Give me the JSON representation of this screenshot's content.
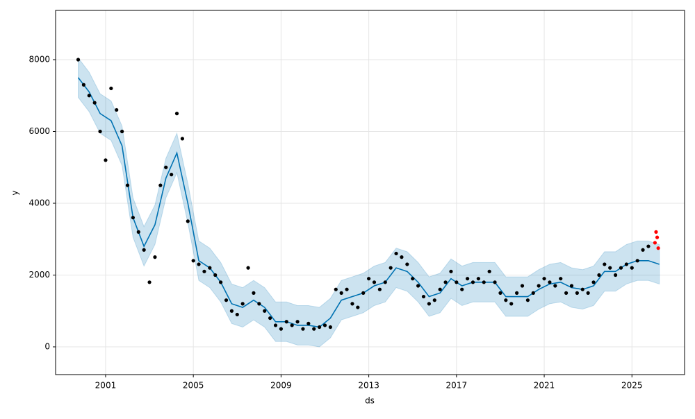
{
  "chart_data": {
    "type": "forecast",
    "xlabel": "ds",
    "ylabel": "y",
    "xlim": [
      1998.72,
      2027.4
    ],
    "ylim": [
      -773,
      9372
    ],
    "xticks": [
      2001,
      2005,
      2009,
      2013,
      2017,
      2021,
      2025
    ],
    "yticks": [
      0,
      2000,
      4000,
      6000,
      8000
    ],
    "grid": true,
    "series": [
      {
        "style": "band",
        "color": "#0072B2",
        "alpha": 0.2,
        "x": [
          1999.75,
          2000.25,
          2000.75,
          2001.25,
          2001.75,
          2002.25,
          2002.75,
          2003.25,
          2003.75,
          2004.25,
          2004.75,
          2005.25,
          2005.75,
          2006.25,
          2006.75,
          2007.25,
          2007.75,
          2008.25,
          2008.75,
          2009.25,
          2009.75,
          2010.25,
          2010.75,
          2011.25,
          2011.75,
          2012.25,
          2012.75,
          2013.25,
          2013.75,
          2014.25,
          2014.75,
          2015.25,
          2015.75,
          2016.25,
          2016.75,
          2017.25,
          2017.75,
          2018.25,
          2018.75,
          2019.25,
          2019.75,
          2020.25,
          2020.75,
          2021.25,
          2021.75,
          2022.25,
          2022.75,
          2023.25,
          2023.75,
          2024.25,
          2024.75,
          2025.25,
          2025.75,
          2026.25
        ],
        "lower": [
          6950,
          6550,
          5950,
          5750,
          5050,
          3050,
          2250,
          2850,
          4150,
          4850,
          3450,
          1850,
          1650,
          1250,
          650,
          550,
          750,
          550,
          150,
          150,
          50,
          50,
          0,
          250,
          750,
          850,
          950,
          1150,
          1250,
          1650,
          1550,
          1250,
          850,
          950,
          1350,
          1150,
          1250,
          1250,
          1250,
          850,
          850,
          850,
          1050,
          1200,
          1250,
          1100,
          1050,
          1150,
          1550,
          1550,
          1750,
          1850,
          1850,
          1750
        ],
        "upper": [
          8050,
          7650,
          7050,
          6850,
          6150,
          4150,
          3350,
          3950,
          5250,
          5950,
          4550,
          2950,
          2750,
          2350,
          1750,
          1650,
          1850,
          1650,
          1250,
          1250,
          1150,
          1150,
          1100,
          1350,
          1850,
          1950,
          2050,
          2250,
          2350,
          2750,
          2650,
          2350,
          1950,
          2050,
          2450,
          2250,
          2350,
          2350,
          2350,
          1950,
          1950,
          1950,
          2150,
          2300,
          2350,
          2200,
          2150,
          2250,
          2650,
          2650,
          2850,
          2950,
          2950,
          2850
        ]
      },
      {
        "style": "line",
        "color": "#0072B2",
        "x": [
          1999.75,
          2000.25,
          2000.75,
          2001.25,
          2001.75,
          2002.25,
          2002.75,
          2003.25,
          2003.75,
          2004.25,
          2004.75,
          2005.25,
          2005.75,
          2006.25,
          2006.75,
          2007.25,
          2007.75,
          2008.25,
          2008.75,
          2009.25,
          2009.75,
          2010.25,
          2010.75,
          2011.25,
          2011.75,
          2012.25,
          2012.75,
          2013.25,
          2013.75,
          2014.25,
          2014.75,
          2015.25,
          2015.75,
          2016.25,
          2016.75,
          2017.25,
          2017.75,
          2018.25,
          2018.75,
          2019.25,
          2019.75,
          2020.25,
          2020.75,
          2021.25,
          2021.75,
          2022.25,
          2022.75,
          2023.25,
          2023.75,
          2024.25,
          2024.75,
          2025.25,
          2025.75,
          2026.25
        ],
        "values": [
          7500,
          7100,
          6500,
          6300,
          5600,
          3600,
          2800,
          3400,
          4700,
          5400,
          4000,
          2400,
          2200,
          1800,
          1200,
          1100,
          1300,
          1100,
          700,
          700,
          600,
          600,
          550,
          800,
          1300,
          1400,
          1500,
          1700,
          1800,
          2200,
          2100,
          1800,
          1400,
          1500,
          1900,
          1700,
          1800,
          1800,
          1800,
          1400,
          1400,
          1400,
          1600,
          1750,
          1800,
          1650,
          1600,
          1700,
          2100,
          2100,
          2300,
          2400,
          2400,
          2300
        ]
      },
      {
        "style": "scatter",
        "color": "#000000",
        "x": [
          1999.75,
          2000,
          2000.25,
          2000.5,
          2000.75,
          2001,
          2001.25,
          2001.5,
          2001.75,
          2002,
          2002.25,
          2002.5,
          2002.75,
          2003,
          2003.25,
          2003.5,
          2003.75,
          2004,
          2004.25,
          2004.5,
          2004.75,
          2005,
          2005.25,
          2005.5,
          2005.75,
          2006,
          2006.25,
          2006.5,
          2006.75,
          2007,
          2007.25,
          2007.5,
          2007.75,
          2008,
          2008.25,
          2008.5,
          2008.75,
          2009,
          2009.25,
          2009.5,
          2009.75,
          2010,
          2010.25,
          2010.5,
          2010.75,
          2011,
          2011.25,
          2011.5,
          2011.75,
          2012,
          2012.25,
          2012.5,
          2012.75,
          2013,
          2013.25,
          2013.5,
          2013.75,
          2014,
          2014.25,
          2014.5,
          2014.75,
          2015,
          2015.25,
          2015.5,
          2015.75,
          2016,
          2016.25,
          2016.5,
          2016.75,
          2017,
          2017.25,
          2017.5,
          2017.75,
          2018,
          2018.25,
          2018.5,
          2018.75,
          2019,
          2019.25,
          2019.5,
          2019.75,
          2020,
          2020.25,
          2020.5,
          2020.75,
          2021,
          2021.25,
          2021.5,
          2021.75,
          2022,
          2022.25,
          2022.5,
          2022.75,
          2023,
          2023.25,
          2023.5,
          2023.75,
          2024,
          2024.25,
          2024.5,
          2024.75,
          2025,
          2025.25,
          2025.5,
          2025.75
        ],
        "values": [
          8000,
          7300,
          7000,
          6800,
          6000,
          5200,
          7200,
          6600,
          6000,
          4500,
          3600,
          3200,
          2700,
          1800,
          2500,
          4500,
          5000,
          4800,
          6500,
          5800,
          3500,
          2400,
          2300,
          2100,
          2200,
          2000,
          1800,
          1300,
          1000,
          900,
          1200,
          2200,
          1500,
          1200,
          1000,
          800,
          600,
          500,
          700,
          600,
          700,
          500,
          650,
          500,
          550,
          600,
          550,
          1600,
          1500,
          1600,
          1200,
          1100,
          1500,
          1900,
          1800,
          1600,
          1800,
          2200,
          2600,
          2500,
          2300,
          1900,
          1700,
          1400,
          1200,
          1300,
          1600,
          1800,
          2100,
          1800,
          1600,
          1900,
          1800,
          1900,
          1800,
          2100,
          1800,
          1500,
          1300,
          1200,
          1500,
          1700,
          1300,
          1500,
          1700,
          1900,
          1800,
          1700,
          1900,
          1500,
          1700,
          1500,
          1600,
          1500,
          1800,
          2000,
          2300,
          2200,
          2000,
          2200,
          2300,
          2200,
          2400,
          2700,
          2800
        ]
      },
      {
        "style": "scatter",
        "color": "#ff0000",
        "x": [
          2026.05,
          2026.1,
          2026.15,
          2026.2
        ],
        "values": [
          2900,
          3200,
          3050,
          2750
        ]
      }
    ]
  }
}
